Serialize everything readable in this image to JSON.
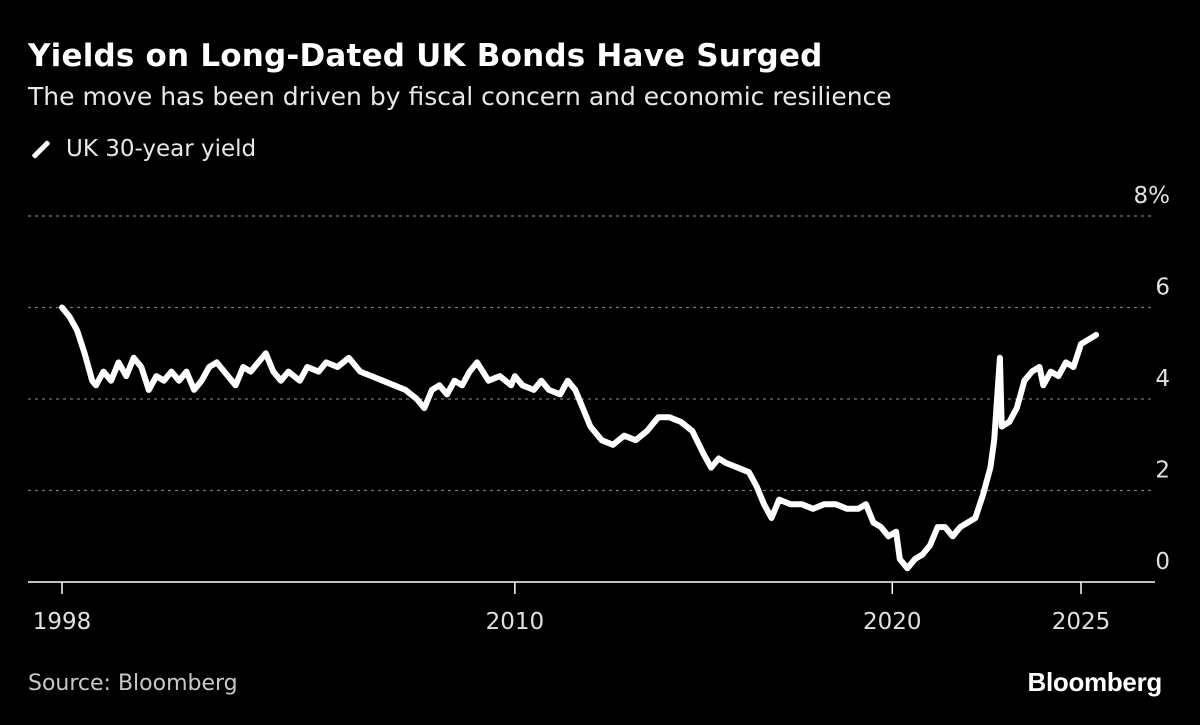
{
  "header": {
    "title": "Yields on Long-Dated UK Bonds Have Surged",
    "subtitle": "The move has been driven by fiscal concern and economic resilience"
  },
  "legend": {
    "label": "UK 30-year yield",
    "icon": "line-swatch-icon"
  },
  "footer": {
    "source": "Source: Bloomberg",
    "brand": "Bloomberg"
  },
  "colors": {
    "background": "#000000",
    "line": "#ffffff",
    "grid": "#777777"
  },
  "chart_data": {
    "type": "line",
    "title": "Yields on Long-Dated UK Bonds Have Surged",
    "xlabel": "",
    "ylabel": "",
    "xlim": [
      1998,
      2027
    ],
    "ylim": [
      0,
      8
    ],
    "x_ticks": [
      {
        "value": 1998,
        "label": "1998"
      },
      {
        "value": 2010,
        "label": "2010"
      },
      {
        "value": 2020,
        "label": "2020"
      },
      {
        "value": 2025,
        "label": "2025"
      }
    ],
    "y_ticks": [
      {
        "value": 8,
        "label": "8%"
      },
      {
        "value": 6,
        "label": "6"
      },
      {
        "value": 4,
        "label": "4"
      },
      {
        "value": 2,
        "label": "2"
      },
      {
        "value": 0,
        "label": "0"
      }
    ],
    "grid": true,
    "series": [
      {
        "name": "UK 30-year yield",
        "points": [
          [
            1998.0,
            6.0
          ],
          [
            1998.2,
            5.8
          ],
          [
            1998.4,
            5.5
          ],
          [
            1998.6,
            5.0
          ],
          [
            1998.8,
            4.4
          ],
          [
            1998.9,
            4.3
          ],
          [
            1999.1,
            4.6
          ],
          [
            1999.3,
            4.4
          ],
          [
            1999.5,
            4.8
          ],
          [
            1999.7,
            4.5
          ],
          [
            1999.9,
            4.9
          ],
          [
            2000.1,
            4.7
          ],
          [
            2000.3,
            4.2
          ],
          [
            2000.5,
            4.5
          ],
          [
            2000.7,
            4.4
          ],
          [
            2000.9,
            4.6
          ],
          [
            2001.1,
            4.4
          ],
          [
            2001.3,
            4.6
          ],
          [
            2001.5,
            4.2
          ],
          [
            2001.7,
            4.4
          ],
          [
            2001.9,
            4.7
          ],
          [
            2002.1,
            4.8
          ],
          [
            2002.3,
            4.6
          ],
          [
            2002.6,
            4.3
          ],
          [
            2002.8,
            4.7
          ],
          [
            2003.0,
            4.6
          ],
          [
            2003.2,
            4.8
          ],
          [
            2003.4,
            5.0
          ],
          [
            2003.6,
            4.6
          ],
          [
            2003.8,
            4.4
          ],
          [
            2004.0,
            4.6
          ],
          [
            2004.3,
            4.4
          ],
          [
            2004.5,
            4.7
          ],
          [
            2004.8,
            4.6
          ],
          [
            2005.0,
            4.8
          ],
          [
            2005.3,
            4.7
          ],
          [
            2005.6,
            4.9
          ],
          [
            2005.9,
            4.6
          ],
          [
            2006.2,
            4.5
          ],
          [
            2006.5,
            4.4
          ],
          [
            2006.8,
            4.3
          ],
          [
            2007.1,
            4.2
          ],
          [
            2007.4,
            4.0
          ],
          [
            2007.6,
            3.8
          ],
          [
            2007.8,
            4.2
          ],
          [
            2008.0,
            4.3
          ],
          [
            2008.2,
            4.1
          ],
          [
            2008.4,
            4.4
          ],
          [
            2008.6,
            4.3
          ],
          [
            2008.8,
            4.6
          ],
          [
            2009.0,
            4.8
          ],
          [
            2009.3,
            4.4
          ],
          [
            2009.6,
            4.5
          ],
          [
            2009.9,
            4.3
          ],
          [
            2010.0,
            4.5
          ],
          [
            2010.2,
            4.3
          ],
          [
            2010.5,
            4.2
          ],
          [
            2010.7,
            4.4
          ],
          [
            2010.9,
            4.2
          ],
          [
            2011.2,
            4.1
          ],
          [
            2011.4,
            4.4
          ],
          [
            2011.6,
            4.2
          ],
          [
            2011.8,
            3.8
          ],
          [
            2012.0,
            3.4
          ],
          [
            2012.3,
            3.1
          ],
          [
            2012.6,
            3.0
          ],
          [
            2012.9,
            3.2
          ],
          [
            2013.2,
            3.1
          ],
          [
            2013.5,
            3.3
          ],
          [
            2013.8,
            3.6
          ],
          [
            2014.1,
            3.6
          ],
          [
            2014.4,
            3.5
          ],
          [
            2014.7,
            3.3
          ],
          [
            2015.0,
            2.8
          ],
          [
            2015.2,
            2.5
          ],
          [
            2015.4,
            2.7
          ],
          [
            2015.6,
            2.6
          ],
          [
            2015.9,
            2.5
          ],
          [
            2016.2,
            2.4
          ],
          [
            2016.4,
            2.1
          ],
          [
            2016.6,
            1.7
          ],
          [
            2016.8,
            1.4
          ],
          [
            2017.0,
            1.8
          ],
          [
            2017.3,
            1.7
          ],
          [
            2017.6,
            1.7
          ],
          [
            2017.9,
            1.6
          ],
          [
            2018.2,
            1.7
          ],
          [
            2018.5,
            1.7
          ],
          [
            2018.8,
            1.6
          ],
          [
            2019.1,
            1.6
          ],
          [
            2019.3,
            1.7
          ],
          [
            2019.5,
            1.3
          ],
          [
            2019.7,
            1.2
          ],
          [
            2019.9,
            1.0
          ],
          [
            2020.1,
            1.1
          ],
          [
            2020.2,
            0.5
          ],
          [
            2020.4,
            0.3
          ],
          [
            2020.6,
            0.5
          ],
          [
            2020.8,
            0.6
          ],
          [
            2021.0,
            0.8
          ],
          [
            2021.2,
            1.2
          ],
          [
            2021.4,
            1.2
          ],
          [
            2021.6,
            1.0
          ],
          [
            2021.8,
            1.2
          ],
          [
            2022.0,
            1.3
          ],
          [
            2022.2,
            1.4
          ],
          [
            2022.4,
            1.9
          ],
          [
            2022.6,
            2.5
          ],
          [
            2022.7,
            3.1
          ],
          [
            2022.8,
            4.3
          ],
          [
            2022.85,
            4.9
          ],
          [
            2022.9,
            3.4
          ],
          [
            2023.1,
            3.5
          ],
          [
            2023.3,
            3.8
          ],
          [
            2023.5,
            4.4
          ],
          [
            2023.7,
            4.6
          ],
          [
            2023.9,
            4.7
          ],
          [
            2024.0,
            4.3
          ],
          [
            2024.2,
            4.6
          ],
          [
            2024.4,
            4.5
          ],
          [
            2024.6,
            4.8
          ],
          [
            2024.8,
            4.7
          ],
          [
            2025.0,
            5.2
          ],
          [
            2025.2,
            5.3
          ],
          [
            2025.4,
            5.4
          ]
        ]
      }
    ]
  }
}
